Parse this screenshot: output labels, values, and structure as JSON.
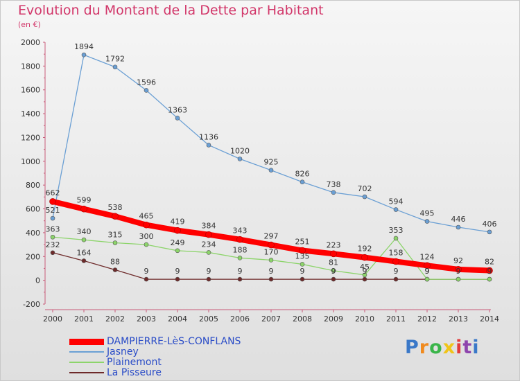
{
  "header": {
    "title": "Evolution du Montant de la Dette par Habitant",
    "subtitle": "(en €)"
  },
  "brand": {
    "text": "Proxiti",
    "colors": [
      "#3a78c8",
      "#f08a1e",
      "#3ab54a",
      "#f0c419",
      "#e23b3b",
      "#8e44ad",
      "#3a78c8"
    ]
  },
  "chart_data": {
    "type": "line",
    "title": "Evolution du Montant de la Dette par Habitant",
    "ylabel": "(en €)",
    "xlabel": "",
    "ylim": [
      -200,
      2000
    ],
    "yticks": [
      -200,
      0,
      200,
      400,
      600,
      800,
      1000,
      1200,
      1400,
      1600,
      1800,
      2000
    ],
    "grid": false,
    "legend": "bottom-left",
    "x": [
      "2000",
      "2001",
      "2002",
      "2003",
      "2004",
      "2005",
      "2006",
      "2007",
      "2008",
      "2009",
      "2010",
      "2011",
      "2012",
      "2013",
      "2014"
    ],
    "series": [
      {
        "name": "DAMPIERRE-LèS-CONFLANS",
        "color": "#ff0000",
        "values": [
          662,
          599,
          538,
          465,
          419,
          384,
          343,
          297,
          251,
          223,
          192,
          158,
          124,
          92,
          82
        ],
        "labels": [
          "662",
          "599",
          "538",
          "465",
          "419",
          "384",
          "343",
          "297",
          "251",
          "223",
          "192",
          "158",
          "124",
          "92",
          "82"
        ]
      },
      {
        "name": "Jasney",
        "color": "#6a9fd4",
        "values": [
          521,
          1894,
          1792,
          1596,
          1363,
          1136,
          1020,
          925,
          826,
          738,
          702,
          594,
          495,
          446,
          406
        ],
        "labels": [
          "521",
          "1894",
          "1792",
          "1596",
          "1363",
          "1136",
          "1020",
          "925",
          "826",
          "738",
          "702",
          "594",
          "495",
          "446",
          "406"
        ]
      },
      {
        "name": "Plainemont",
        "color": "#8cd46a",
        "values": [
          363,
          340,
          315,
          300,
          249,
          234,
          188,
          170,
          135,
          81,
          45,
          353,
          9,
          9,
          9
        ],
        "labels": [
          "363",
          "340",
          "315",
          "300",
          "249",
          "234",
          "188",
          "170",
          "135",
          "81",
          "45",
          "353",
          "9",
          "",
          ""
        ]
      },
      {
        "name": "La Pisseure",
        "color": "#6e2a2a",
        "values": [
          232,
          164,
          88,
          9,
          9,
          9,
          9,
          9,
          9,
          9,
          9,
          9,
          9,
          9,
          9
        ],
        "labels": [
          "232",
          "164",
          "88",
          "9",
          "9",
          "9",
          "9",
          "9",
          "9",
          "9",
          "9",
          "9",
          "9",
          "9",
          "9"
        ]
      }
    ]
  }
}
